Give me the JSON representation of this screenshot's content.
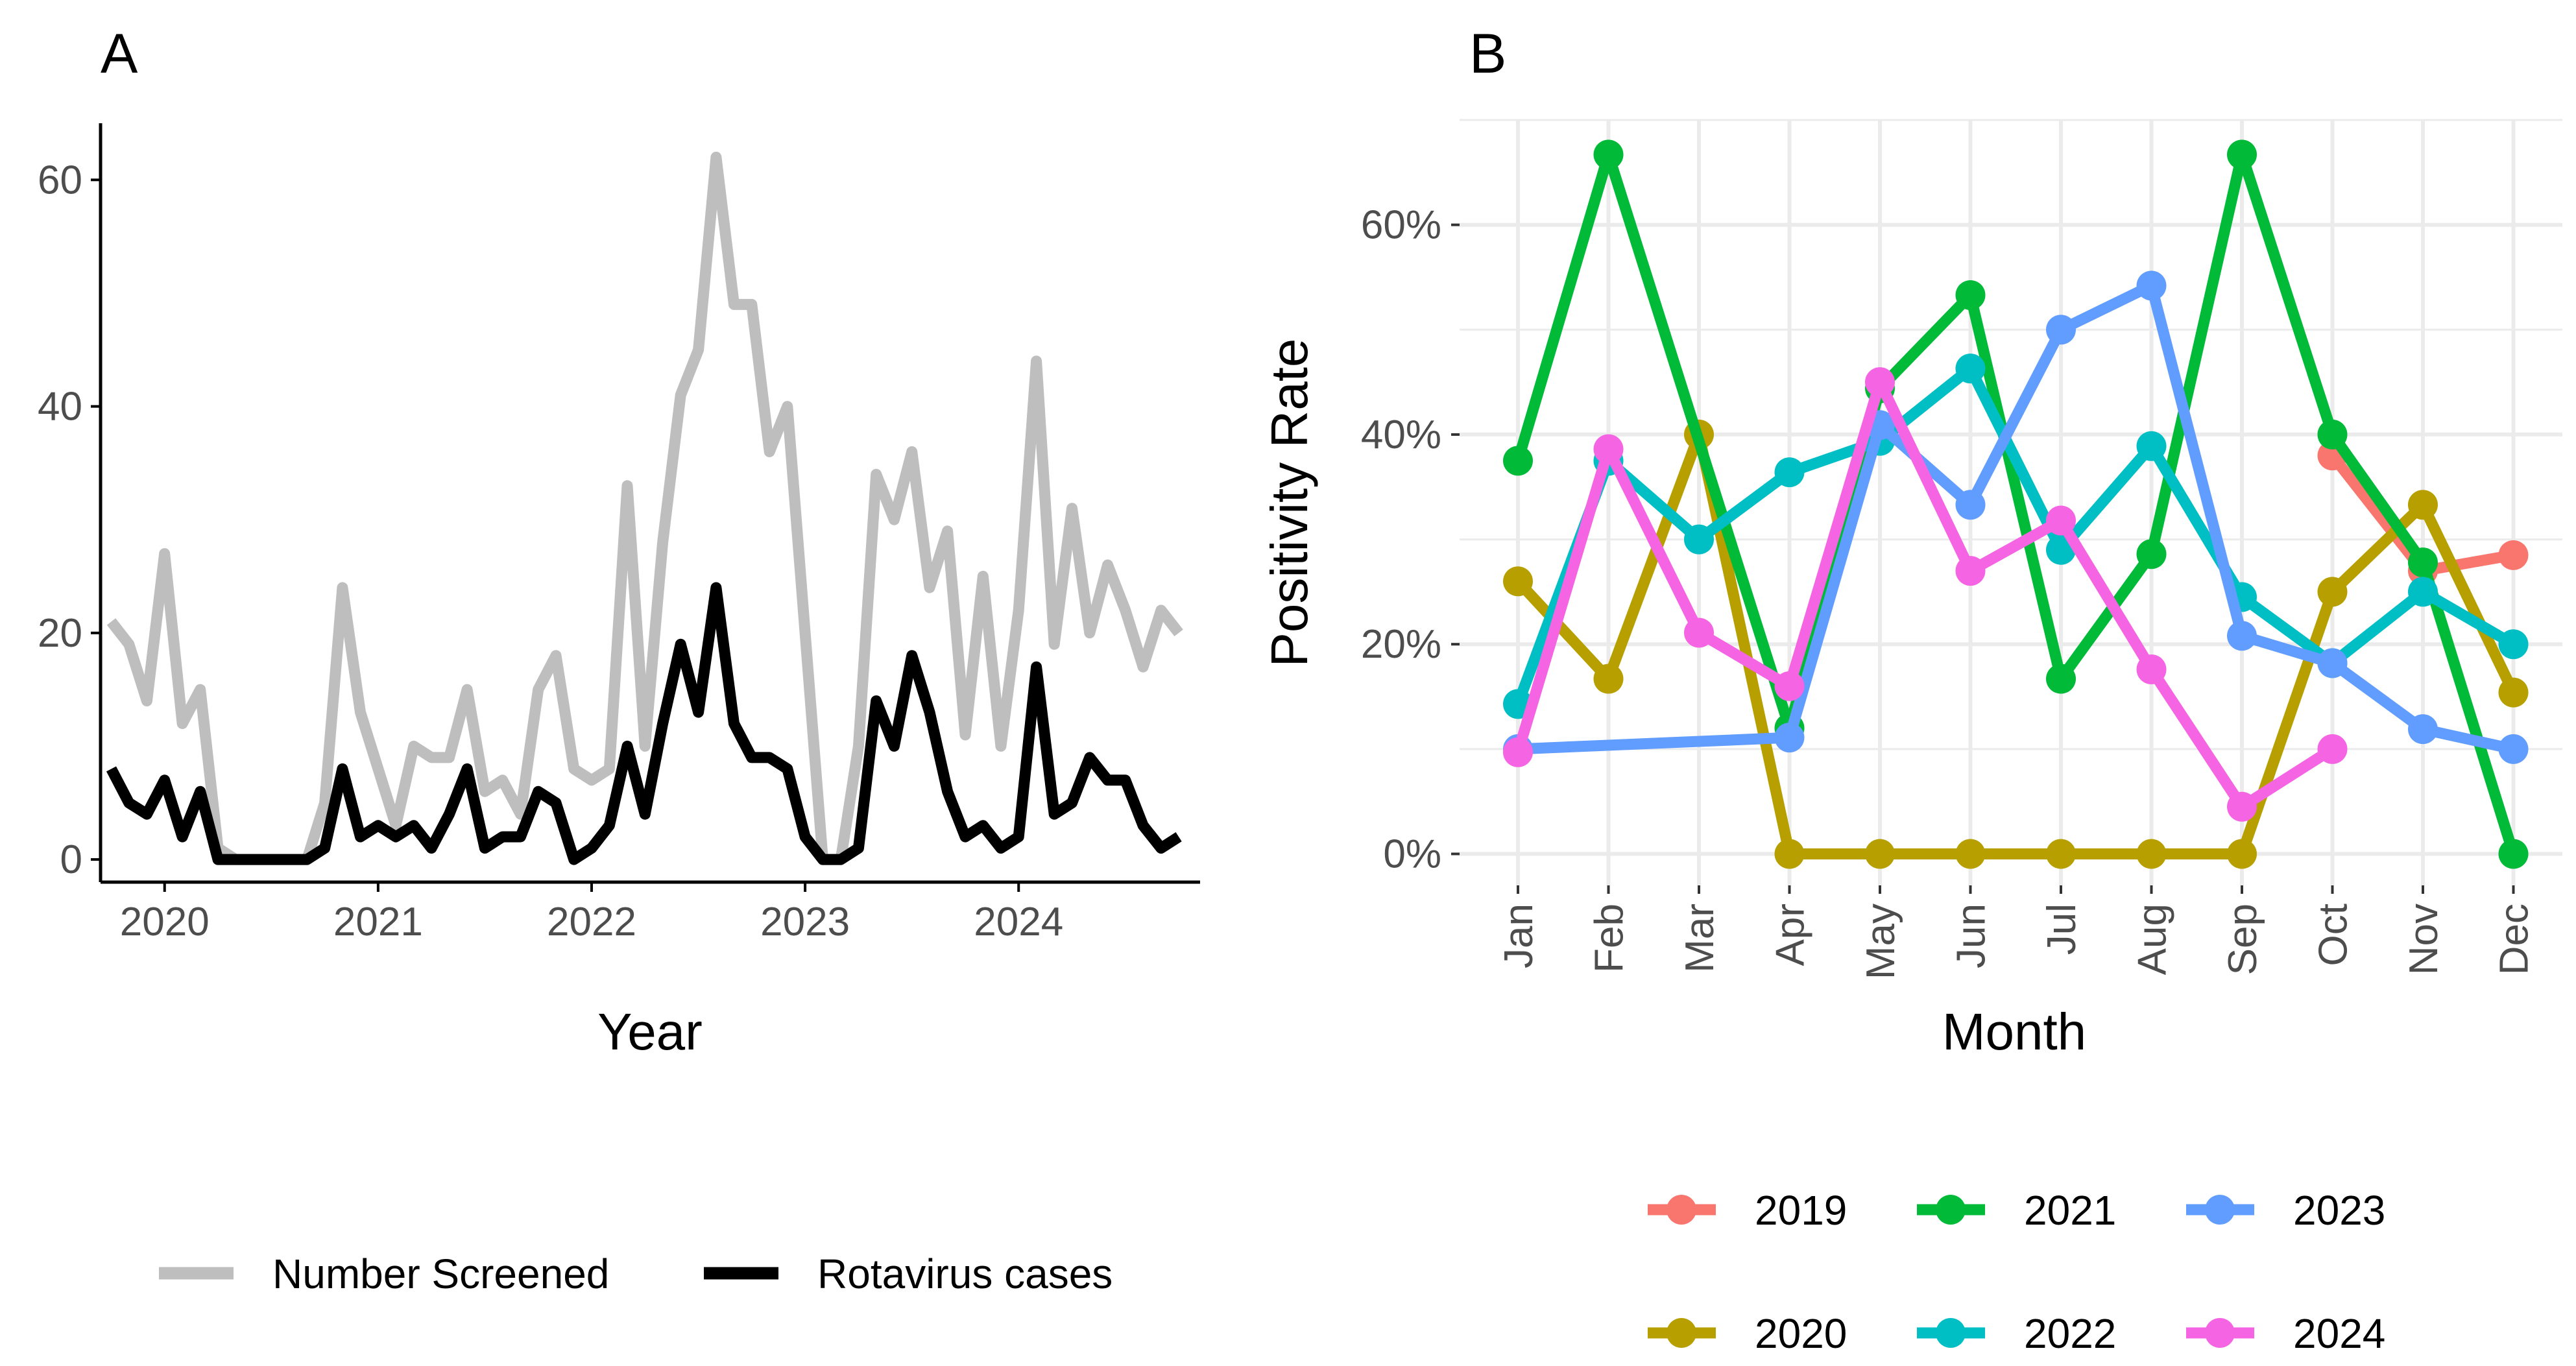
{
  "colors": {
    "screened": "#bebebe",
    "cases": "#000000",
    "y2019": "#F8766D",
    "y2020": "#B79F00",
    "y2021": "#00BA38",
    "y2022": "#00BFC4",
    "y2023": "#619CFF",
    "y2024": "#F564E3"
  },
  "chart_data": [
    {
      "type": "line",
      "panel_label": "A",
      "title": "",
      "xlabel": "Year",
      "ylabel": "",
      "x_ticks": [
        "2020",
        "2021",
        "2022",
        "2023",
        "2024"
      ],
      "y_ticks": [
        "0",
        "20",
        "40",
        "60"
      ],
      "xlim": [
        2019.7,
        2024.85
      ],
      "ylim": [
        -2,
        65
      ],
      "grid": false,
      "legend_position": "bottom",
      "x": [
        2019.75,
        2019.833,
        2019.917,
        2020.0,
        2020.083,
        2020.167,
        2020.25,
        2020.333,
        2020.417,
        2020.5,
        2020.583,
        2020.667,
        2020.75,
        2020.833,
        2020.917,
        2021.0,
        2021.083,
        2021.167,
        2021.25,
        2021.333,
        2021.417,
        2021.5,
        2021.583,
        2021.667,
        2021.75,
        2021.833,
        2021.917,
        2022.0,
        2022.083,
        2022.167,
        2022.25,
        2022.333,
        2022.417,
        2022.5,
        2022.583,
        2022.667,
        2022.75,
        2022.833,
        2022.917,
        2023.0,
        2023.083,
        2023.167,
        2023.25,
        2023.333,
        2023.417,
        2023.5,
        2023.583,
        2023.667,
        2023.75,
        2023.833,
        2023.917,
        2024.0,
        2024.083,
        2024.167,
        2024.25,
        2024.333,
        2024.417,
        2024.5,
        2024.583,
        2024.667,
        2024.75
      ],
      "series": [
        {
          "name": "Number Screened",
          "color_key": "screened",
          "values": [
            21,
            19,
            14,
            27,
            12,
            15,
            1,
            0,
            0,
            0,
            0,
            0,
            5,
            24,
            13,
            8,
            3,
            10,
            9,
            9,
            15,
            6,
            7,
            4,
            15,
            18,
            8,
            7,
            8,
            33,
            10,
            28,
            41,
            45,
            62,
            49,
            49,
            36,
            40,
            20,
            0,
            0,
            10,
            34,
            30,
            36,
            24,
            29,
            11,
            25,
            10,
            22,
            44,
            19,
            31,
            20,
            26,
            22,
            17,
            22,
            20
          ]
        },
        {
          "name": "Rotavirus cases",
          "color_key": "cases",
          "values": [
            8,
            5,
            4,
            7,
            2,
            6,
            0,
            0,
            0,
            0,
            0,
            0,
            1,
            8,
            2,
            3,
            2,
            3,
            1,
            4,
            8,
            1,
            2,
            2,
            6,
            5,
            0,
            1,
            3,
            10,
            4,
            12,
            19,
            13,
            24,
            12,
            9,
            9,
            8,
            2,
            0,
            0,
            1,
            14,
            10,
            18,
            13,
            6,
            2,
            3,
            1,
            2,
            17,
            4,
            5,
            9,
            7,
            7,
            3,
            1,
            2
          ]
        }
      ]
    },
    {
      "type": "line",
      "panel_label": "B",
      "title": "",
      "xlabel": "Month",
      "ylabel": "Positivity Rate",
      "categories": [
        "Jan",
        "Feb",
        "Mar",
        "Apr",
        "May",
        "Jun",
        "Jul",
        "Aug",
        "Sep",
        "Oct",
        "Nov",
        "Dec"
      ],
      "y_ticks": [
        "0%",
        "20%",
        "40%",
        "60%"
      ],
      "ylim": [
        -3,
        70
      ],
      "grid": true,
      "legend_position": "bottom",
      "series": [
        {
          "name": "2019",
          "color_key": "y2019",
          "values": [
            null,
            null,
            null,
            null,
            null,
            null,
            null,
            null,
            null,
            38,
            27,
            28.5
          ]
        },
        {
          "name": "2020",
          "color_key": "y2020",
          "values": [
            26,
            16.7,
            40,
            0,
            0,
            0,
            0,
            0,
            0,
            25,
            33.3,
            15.4
          ]
        },
        {
          "name": "2021",
          "color_key": "y2021",
          "values": [
            37.5,
            66.7,
            null,
            12,
            44.4,
            53.3,
            16.7,
            28.6,
            66.7,
            40,
            27.8,
            0
          ]
        },
        {
          "name": "2022",
          "color_key": "y2022",
          "values": [
            14.3,
            37.5,
            30,
            36.4,
            39.4,
            46.3,
            29,
            38.9,
            24.5,
            18.2,
            25,
            20
          ]
        },
        {
          "name": "2023",
          "color_key": "y2023",
          "values": [
            10,
            null,
            null,
            11.1,
            40.9,
            33.3,
            50,
            54.2,
            20.8,
            18.2,
            11.9,
            10
          ]
        },
        {
          "name": "2024",
          "color_key": "y2024",
          "values": [
            9.7,
            38.6,
            21.1,
            16,
            45,
            27,
            31.8,
            17.6,
            4.5,
            10,
            null,
            null
          ]
        }
      ]
    }
  ],
  "legend_a": [
    {
      "label": "Number Screened",
      "color_key": "screened"
    },
    {
      "label": "Rotavirus cases",
      "color_key": "cases"
    }
  ],
  "legend_b": [
    {
      "label": "2019",
      "color_key": "y2019"
    },
    {
      "label": "2021",
      "color_key": "y2021"
    },
    {
      "label": "2023",
      "color_key": "y2023"
    },
    {
      "label": "2020",
      "color_key": "y2020"
    },
    {
      "label": "2022",
      "color_key": "y2022"
    },
    {
      "label": "2024",
      "color_key": "y2024"
    }
  ]
}
